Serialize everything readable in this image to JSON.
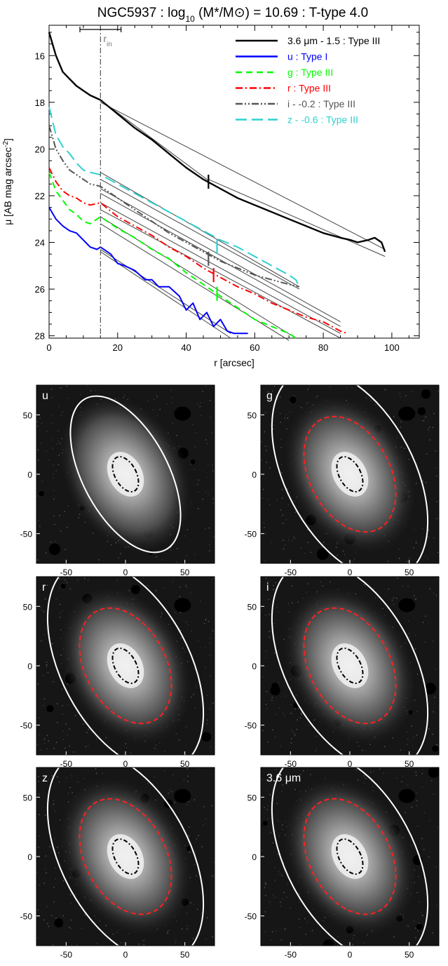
{
  "chart_data": [
    {
      "type": "line",
      "title": "NGC5937 : log10 (M*/M⊙) = 10.69 : T-type 4.0",
      "xlabel": "r [arcsec]",
      "ylabel": "μ [AB mag arcsec⁻²]",
      "xlim": [
        0,
        108
      ],
      "ylim": [
        28.1,
        14.7
      ],
      "y_inverted": true,
      "xticks": [
        0,
        20,
        40,
        60,
        80,
        100
      ],
      "yticks": [
        16,
        18,
        20,
        22,
        24,
        26,
        28
      ],
      "grid": false,
      "legend_position": "top-right",
      "annotations": {
        "r_in_label": "r",
        "r_in_subscript": "in",
        "r_in_value": 15,
        "r_in_errbar": [
          9,
          21
        ]
      },
      "series": [
        {
          "name": "3.6 μm - 1.5 : Type III",
          "color": "#000000",
          "dash": "solid",
          "x": [
            0,
            2,
            4,
            6,
            8,
            10,
            12,
            15,
            20,
            25,
            30,
            35,
            40,
            45,
            50,
            55,
            60,
            65,
            70,
            75,
            80,
            85,
            88,
            90,
            93,
            95,
            97,
            98
          ],
          "y": [
            15.0,
            16.0,
            16.7,
            17.0,
            17.3,
            17.5,
            17.7,
            17.9,
            18.5,
            19.1,
            19.6,
            20.2,
            20.8,
            21.3,
            21.7,
            22.1,
            22.4,
            22.7,
            23.0,
            23.3,
            23.6,
            23.8,
            23.9,
            24.0,
            23.9,
            23.8,
            24.0,
            24.4
          ],
          "break_r": 46.5,
          "break_mu": 21.4,
          "fits": [
            [
              15,
              17.9,
              46.5,
              21.35
            ],
            [
              15,
              18.0,
              98,
              24.3
            ],
            [
              46.5,
              21.3,
              98,
              24.6
            ]
          ]
        },
        {
          "name": "u : Type I",
          "color": "#0000ff",
          "dash": "solid",
          "x": [
            0,
            2,
            4,
            6,
            8,
            10,
            12,
            14,
            15,
            18,
            20,
            22,
            25,
            28,
            30,
            32,
            35,
            38,
            40,
            42,
            44,
            46,
            48,
            50,
            52,
            54,
            56,
            58
          ],
          "y": [
            22.5,
            23.0,
            23.3,
            23.5,
            23.6,
            23.9,
            24.2,
            24.3,
            24.2,
            24.5,
            24.9,
            25.0,
            25.2,
            25.6,
            25.6,
            25.9,
            25.9,
            26.3,
            26.9,
            26.6,
            27.3,
            27.0,
            27.6,
            27.3,
            27.8,
            27.9,
            27.9,
            27.9
          ],
          "fits": [
            [
              15,
              24.3,
              53,
              27.9
            ],
            [
              15,
              24.4,
              53,
              28.1
            ]
          ]
        },
        {
          "name": "g : Type III",
          "color": "#00ff00",
          "dash": "dashed",
          "x": [
            0,
            2,
            4,
            6,
            8,
            10,
            12,
            15,
            20,
            25,
            30,
            35,
            40,
            45,
            50,
            55,
            60,
            65,
            70,
            72
          ],
          "y": [
            21.0,
            21.8,
            22.2,
            22.6,
            22.8,
            23.1,
            23.2,
            22.9,
            23.4,
            23.8,
            24.3,
            24.7,
            25.3,
            25.8,
            26.3,
            26.8,
            27.3,
            27.6,
            27.9,
            28.1
          ],
          "break_r": 49,
          "break_mu": 26.2,
          "fits": [
            [
              15,
              22.9,
              72,
              28.1
            ],
            [
              15,
              23.2,
              70,
              28.2
            ]
          ]
        },
        {
          "name": "r : Type III",
          "color": "#ff0000",
          "dash": "dashdot",
          "x": [
            0,
            2,
            4,
            6,
            8,
            10,
            12,
            15,
            20,
            25,
            30,
            35,
            40,
            45,
            50,
            55,
            60,
            65,
            70,
            75,
            80,
            85,
            87
          ],
          "y": [
            20.8,
            21.4,
            21.8,
            22.0,
            22.1,
            22.3,
            22.4,
            22.3,
            22.9,
            23.3,
            23.7,
            24.2,
            24.6,
            25.1,
            25.5,
            25.9,
            26.2,
            26.6,
            26.9,
            27.2,
            27.4,
            27.8,
            27.9
          ],
          "break_r": 48,
          "break_mu": 25.4,
          "fits": [
            [
              15,
              22.3,
              85,
              27.9
            ],
            [
              15,
              22.6,
              85,
              28.1
            ]
          ]
        },
        {
          "name": "i - -0.2 : Type III",
          "color": "#555555",
          "dash": "dashdotdot",
          "x": [
            0,
            2,
            4,
            6,
            8,
            10,
            12,
            15,
            20,
            25,
            30,
            35,
            40,
            45,
            50,
            55,
            60,
            65,
            70,
            73
          ],
          "y": [
            19.0,
            20.0,
            20.5,
            20.9,
            21.1,
            21.3,
            21.5,
            21.6,
            22.1,
            22.6,
            23.1,
            23.6,
            24.0,
            24.4,
            24.8,
            25.1,
            25.4,
            25.6,
            25.8,
            25.9
          ],
          "break_r": 46.5,
          "break_mu": 24.7,
          "fits": [
            [
              15,
              21.7,
              85,
              27.4
            ],
            [
              15,
              21.9,
              85,
              27.6
            ]
          ]
        },
        {
          "name": "z - -0.6 : Type III",
          "color": "#30d0d0",
          "dash": "longdash",
          "x": [
            0,
            2,
            4,
            6,
            8,
            10,
            12,
            15,
            20,
            25,
            30,
            35,
            40,
            45,
            50,
            55,
            60,
            65,
            70,
            72,
            73
          ],
          "y": [
            18.2,
            19.4,
            19.9,
            20.2,
            20.6,
            20.9,
            21.0,
            21.1,
            21.5,
            21.9,
            22.3,
            22.7,
            23.1,
            23.5,
            23.9,
            24.2,
            24.6,
            25.0,
            25.4,
            25.6,
            25.9
          ],
          "break_r": 49,
          "break_mu": 24.2,
          "fits": [
            [
              15,
              21.0,
              73,
              25.9
            ],
            [
              15,
              21.3,
              73,
              26.0
            ]
          ]
        }
      ]
    },
    {
      "type": "image",
      "panels": [
        {
          "label": "u",
          "label_sub": "",
          "ticks": [
            "50",
            "0",
            "-50",
            "-50",
            "0",
            "50"
          ],
          "inner_ellipse": true,
          "red_ellipse": false,
          "outer_ellipse": true
        },
        {
          "label": "g",
          "label_sub": "",
          "ticks": [
            "50",
            "0",
            "-50",
            "-50",
            "0",
            "50"
          ],
          "inner_ellipse": true,
          "red_ellipse": true,
          "outer_ellipse": true
        },
        {
          "label": "r",
          "label_sub": "",
          "ticks": [
            "50",
            "0",
            "-50",
            "-50",
            "0",
            "50"
          ],
          "inner_ellipse": true,
          "red_ellipse": true,
          "outer_ellipse": true
        },
        {
          "label": "i",
          "label_sub": "",
          "ticks": [
            "50",
            "0",
            "-50",
            "-50",
            "0",
            "50"
          ],
          "inner_ellipse": true,
          "red_ellipse": true,
          "outer_ellipse": true
        },
        {
          "label": "z",
          "label_sub": "",
          "ticks": [
            "50",
            "0",
            "-50",
            "-50",
            "0",
            "50"
          ],
          "inner_ellipse": true,
          "red_ellipse": true,
          "outer_ellipse": true
        },
        {
          "label": "3.6 μm",
          "label_sub": "",
          "ticks": [
            "50",
            "0",
            "-50",
            "-50",
            "0",
            "50"
          ],
          "inner_ellipse": true,
          "red_ellipse": true,
          "outer_ellipse": true
        }
      ]
    }
  ],
  "colors": {
    "black": "#000000",
    "u": "#0000ff",
    "g": "#00ff00",
    "r": "#ff0000",
    "i": "#555555",
    "z": "#30d0d0",
    "fit": "#555555",
    "red_ellipse": "#ff2020"
  }
}
